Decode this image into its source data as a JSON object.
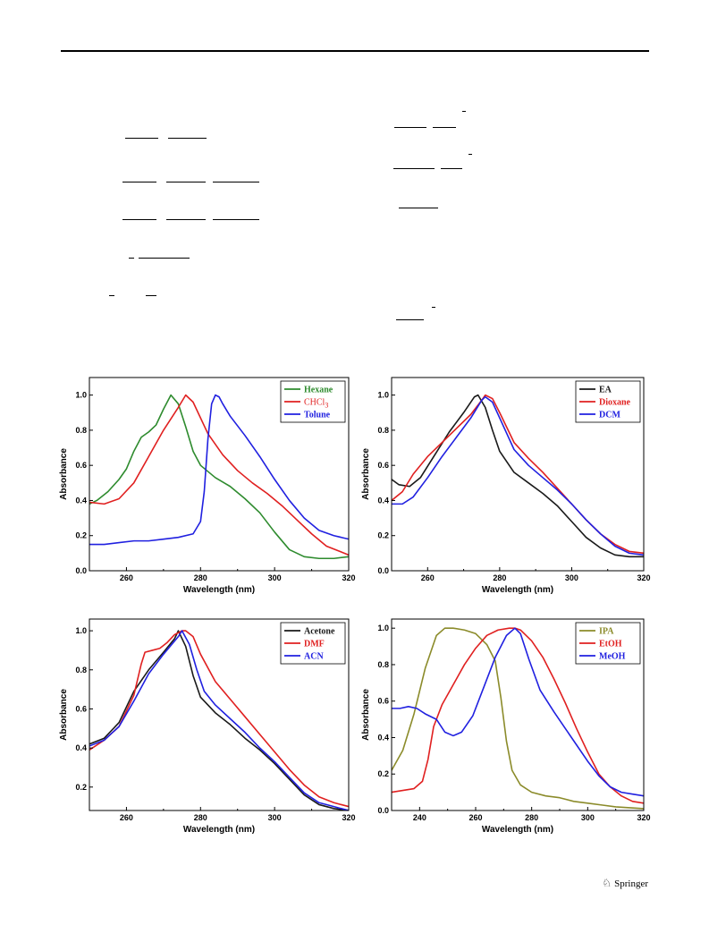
{
  "footer": {
    "publisher": "Springer",
    "logo_icon": "springer-horse-icon"
  },
  "chart_data": [
    {
      "type": "line",
      "title": "",
      "xlabel": "Wavelength (nm)",
      "ylabel": "Absorbance",
      "xlim": [
        250,
        320
      ],
      "ylim": [
        0,
        1.1
      ],
      "xticks": [
        260,
        280,
        300,
        320
      ],
      "yticks": [
        0.0,
        0.2,
        0.4,
        0.6,
        0.8,
        1.0
      ],
      "legend": "top-right",
      "series": [
        {
          "name": "Hexane",
          "color": "#2e8b2e",
          "x": [
            250,
            252,
            255,
            258,
            260,
            262,
            264,
            266,
            268,
            270,
            272,
            274,
            276,
            278,
            280,
            284,
            288,
            292,
            296,
            300,
            304,
            308,
            312,
            316,
            320
          ],
          "y": [
            0.38,
            0.4,
            0.45,
            0.52,
            0.58,
            0.68,
            0.76,
            0.79,
            0.83,
            0.92,
            1.0,
            0.95,
            0.82,
            0.68,
            0.6,
            0.53,
            0.48,
            0.41,
            0.33,
            0.22,
            0.12,
            0.08,
            0.07,
            0.07,
            0.08
          ]
        },
        {
          "name": "CHCl3",
          "color": "#e02020",
          "x": [
            250,
            254,
            258,
            262,
            266,
            270,
            274,
            276,
            278,
            282,
            286,
            290,
            294,
            298,
            302,
            306,
            310,
            314,
            320
          ],
          "y": [
            0.39,
            0.38,
            0.41,
            0.5,
            0.65,
            0.8,
            0.93,
            1.0,
            0.96,
            0.78,
            0.66,
            0.57,
            0.5,
            0.44,
            0.37,
            0.29,
            0.21,
            0.14,
            0.09
          ]
        },
        {
          "name": "Tolune",
          "color": "#2020e0",
          "x": [
            250,
            254,
            258,
            262,
            266,
            270,
            274,
            278,
            280,
            281,
            282,
            283,
            284,
            285,
            286,
            288,
            292,
            296,
            300,
            304,
            308,
            312,
            316,
            320
          ],
          "y": [
            0.15,
            0.15,
            0.16,
            0.17,
            0.17,
            0.18,
            0.19,
            0.21,
            0.28,
            0.45,
            0.75,
            0.95,
            1.0,
            0.99,
            0.95,
            0.88,
            0.77,
            0.65,
            0.52,
            0.4,
            0.3,
            0.23,
            0.2,
            0.18
          ]
        }
      ]
    },
    {
      "type": "line",
      "title": "",
      "xlabel": "Wavelength (nm)",
      "ylabel": "Absorbance",
      "xlim": [
        250,
        320
      ],
      "ylim": [
        0,
        1.1
      ],
      "xticks": [
        260,
        280,
        300,
        320
      ],
      "yticks": [
        0.0,
        0.2,
        0.4,
        0.6,
        0.8,
        1.0
      ],
      "legend": "top-right",
      "series": [
        {
          "name": "EA",
          "color": "#1a1a1a",
          "x": [
            250,
            252,
            255,
            258,
            262,
            266,
            270,
            273,
            274,
            276,
            278,
            280,
            284,
            288,
            292,
            296,
            300,
            304,
            308,
            312,
            316,
            320
          ],
          "y": [
            0.52,
            0.49,
            0.48,
            0.53,
            0.66,
            0.79,
            0.9,
            0.99,
            1.0,
            0.93,
            0.8,
            0.68,
            0.56,
            0.5,
            0.44,
            0.37,
            0.28,
            0.19,
            0.13,
            0.09,
            0.08,
            0.08
          ]
        },
        {
          "name": "Dioxane",
          "color": "#e02020",
          "x": [
            250,
            253,
            256,
            260,
            264,
            268,
            272,
            275,
            276,
            278,
            280,
            284,
            288,
            292,
            296,
            300,
            304,
            308,
            312,
            316,
            320
          ],
          "y": [
            0.4,
            0.45,
            0.55,
            0.65,
            0.73,
            0.81,
            0.89,
            0.97,
            1.0,
            0.98,
            0.9,
            0.73,
            0.64,
            0.56,
            0.47,
            0.38,
            0.29,
            0.21,
            0.15,
            0.11,
            0.1
          ]
        },
        {
          "name": "DCM",
          "color": "#2020e0",
          "x": [
            250,
            253,
            256,
            260,
            264,
            268,
            272,
            275,
            276,
            278,
            280,
            284,
            288,
            292,
            296,
            300,
            304,
            308,
            312,
            316,
            320
          ],
          "y": [
            0.38,
            0.38,
            0.42,
            0.53,
            0.65,
            0.76,
            0.87,
            0.97,
            0.99,
            0.96,
            0.87,
            0.69,
            0.6,
            0.53,
            0.46,
            0.38,
            0.29,
            0.21,
            0.14,
            0.1,
            0.09
          ]
        }
      ]
    },
    {
      "type": "line",
      "title": "",
      "xlabel": "Wavelength (nm)",
      "ylabel": "Absorbance",
      "xlim": [
        250,
        320
      ],
      "ylim": [
        0.08,
        1.06
      ],
      "xticks": [
        260,
        280,
        300,
        320
      ],
      "yticks": [
        0.2,
        0.4,
        0.6,
        0.8,
        1.0
      ],
      "legend": "top-right",
      "series": [
        {
          "name": "Acetone",
          "color": "#1a1a1a",
          "x": [
            250,
            254,
            258,
            262,
            266,
            270,
            273,
            274,
            276,
            278,
            280,
            284,
            288,
            292,
            296,
            300,
            304,
            308,
            312,
            316,
            320
          ],
          "y": [
            0.42,
            0.45,
            0.53,
            0.69,
            0.8,
            0.89,
            0.96,
            1.0,
            0.92,
            0.77,
            0.66,
            0.58,
            0.52,
            0.45,
            0.39,
            0.32,
            0.24,
            0.16,
            0.11,
            0.09,
            0.08
          ]
        },
        {
          "name": "DMF",
          "color": "#e02020",
          "x": [
            250,
            254,
            258,
            262,
            264,
            265,
            267,
            269,
            271,
            273,
            275,
            276,
            278,
            280,
            284,
            288,
            292,
            296,
            300,
            304,
            308,
            312,
            316,
            320
          ],
          "y": [
            0.39,
            0.44,
            0.51,
            0.67,
            0.83,
            0.89,
            0.9,
            0.91,
            0.94,
            0.98,
            1.0,
            1.0,
            0.97,
            0.88,
            0.74,
            0.65,
            0.56,
            0.47,
            0.38,
            0.29,
            0.21,
            0.15,
            0.12,
            0.1
          ]
        },
        {
          "name": "ACN",
          "color": "#2020e0",
          "x": [
            250,
            254,
            258,
            262,
            266,
            270,
            274,
            275,
            277,
            279,
            281,
            284,
            288,
            292,
            296,
            300,
            304,
            308,
            312,
            316,
            320
          ],
          "y": [
            0.41,
            0.44,
            0.51,
            0.64,
            0.78,
            0.88,
            0.97,
            1.0,
            0.93,
            0.8,
            0.69,
            0.62,
            0.55,
            0.48,
            0.4,
            0.33,
            0.25,
            0.17,
            0.12,
            0.1,
            0.08
          ]
        }
      ]
    },
    {
      "type": "line",
      "title": "",
      "xlabel": "Wavelength (nm)",
      "ylabel": "Absorbance",
      "xlim": [
        230,
        320
      ],
      "ylim": [
        0,
        1.05
      ],
      "xticks": [
        240,
        260,
        280,
        300,
        320
      ],
      "yticks": [
        0.0,
        0.2,
        0.4,
        0.6,
        0.8,
        1.0
      ],
      "legend": "top-right",
      "series": [
        {
          "name": "IPA",
          "color": "#8b8b2a",
          "x": [
            230,
            234,
            238,
            242,
            246,
            249,
            252,
            256,
            260,
            264,
            267,
            269,
            271,
            273,
            276,
            280,
            285,
            290,
            295,
            300,
            305,
            310,
            315,
            320
          ],
          "y": [
            0.22,
            0.33,
            0.53,
            0.78,
            0.96,
            1.0,
            1.0,
            0.99,
            0.97,
            0.91,
            0.82,
            0.62,
            0.38,
            0.22,
            0.14,
            0.1,
            0.08,
            0.07,
            0.05,
            0.04,
            0.03,
            0.02,
            0.015,
            0.01
          ]
        },
        {
          "name": "EtOH",
          "color": "#e02020",
          "x": [
            230,
            234,
            238,
            241,
            243,
            245,
            248,
            252,
            256,
            260,
            264,
            268,
            272,
            274,
            276,
            280,
            284,
            288,
            292,
            296,
            300,
            304,
            308,
            312,
            316,
            320
          ],
          "y": [
            0.1,
            0.11,
            0.12,
            0.16,
            0.28,
            0.46,
            0.58,
            0.69,
            0.8,
            0.89,
            0.96,
            0.99,
            1.0,
            1.0,
            0.99,
            0.93,
            0.84,
            0.72,
            0.59,
            0.45,
            0.32,
            0.2,
            0.13,
            0.08,
            0.05,
            0.04
          ]
        },
        {
          "name": "MeOH",
          "color": "#2020e0",
          "x": [
            230,
            233,
            236,
            239,
            242,
            246,
            249,
            252,
            255,
            259,
            263,
            267,
            271,
            274,
            276,
            279,
            283,
            288,
            292,
            296,
            300,
            304,
            308,
            312,
            316,
            320
          ],
          "y": [
            0.56,
            0.56,
            0.57,
            0.56,
            0.53,
            0.5,
            0.43,
            0.41,
            0.43,
            0.52,
            0.68,
            0.84,
            0.96,
            1.0,
            0.97,
            0.83,
            0.66,
            0.54,
            0.45,
            0.36,
            0.27,
            0.19,
            0.13,
            0.1,
            0.09,
            0.08
          ]
        }
      ]
    }
  ]
}
